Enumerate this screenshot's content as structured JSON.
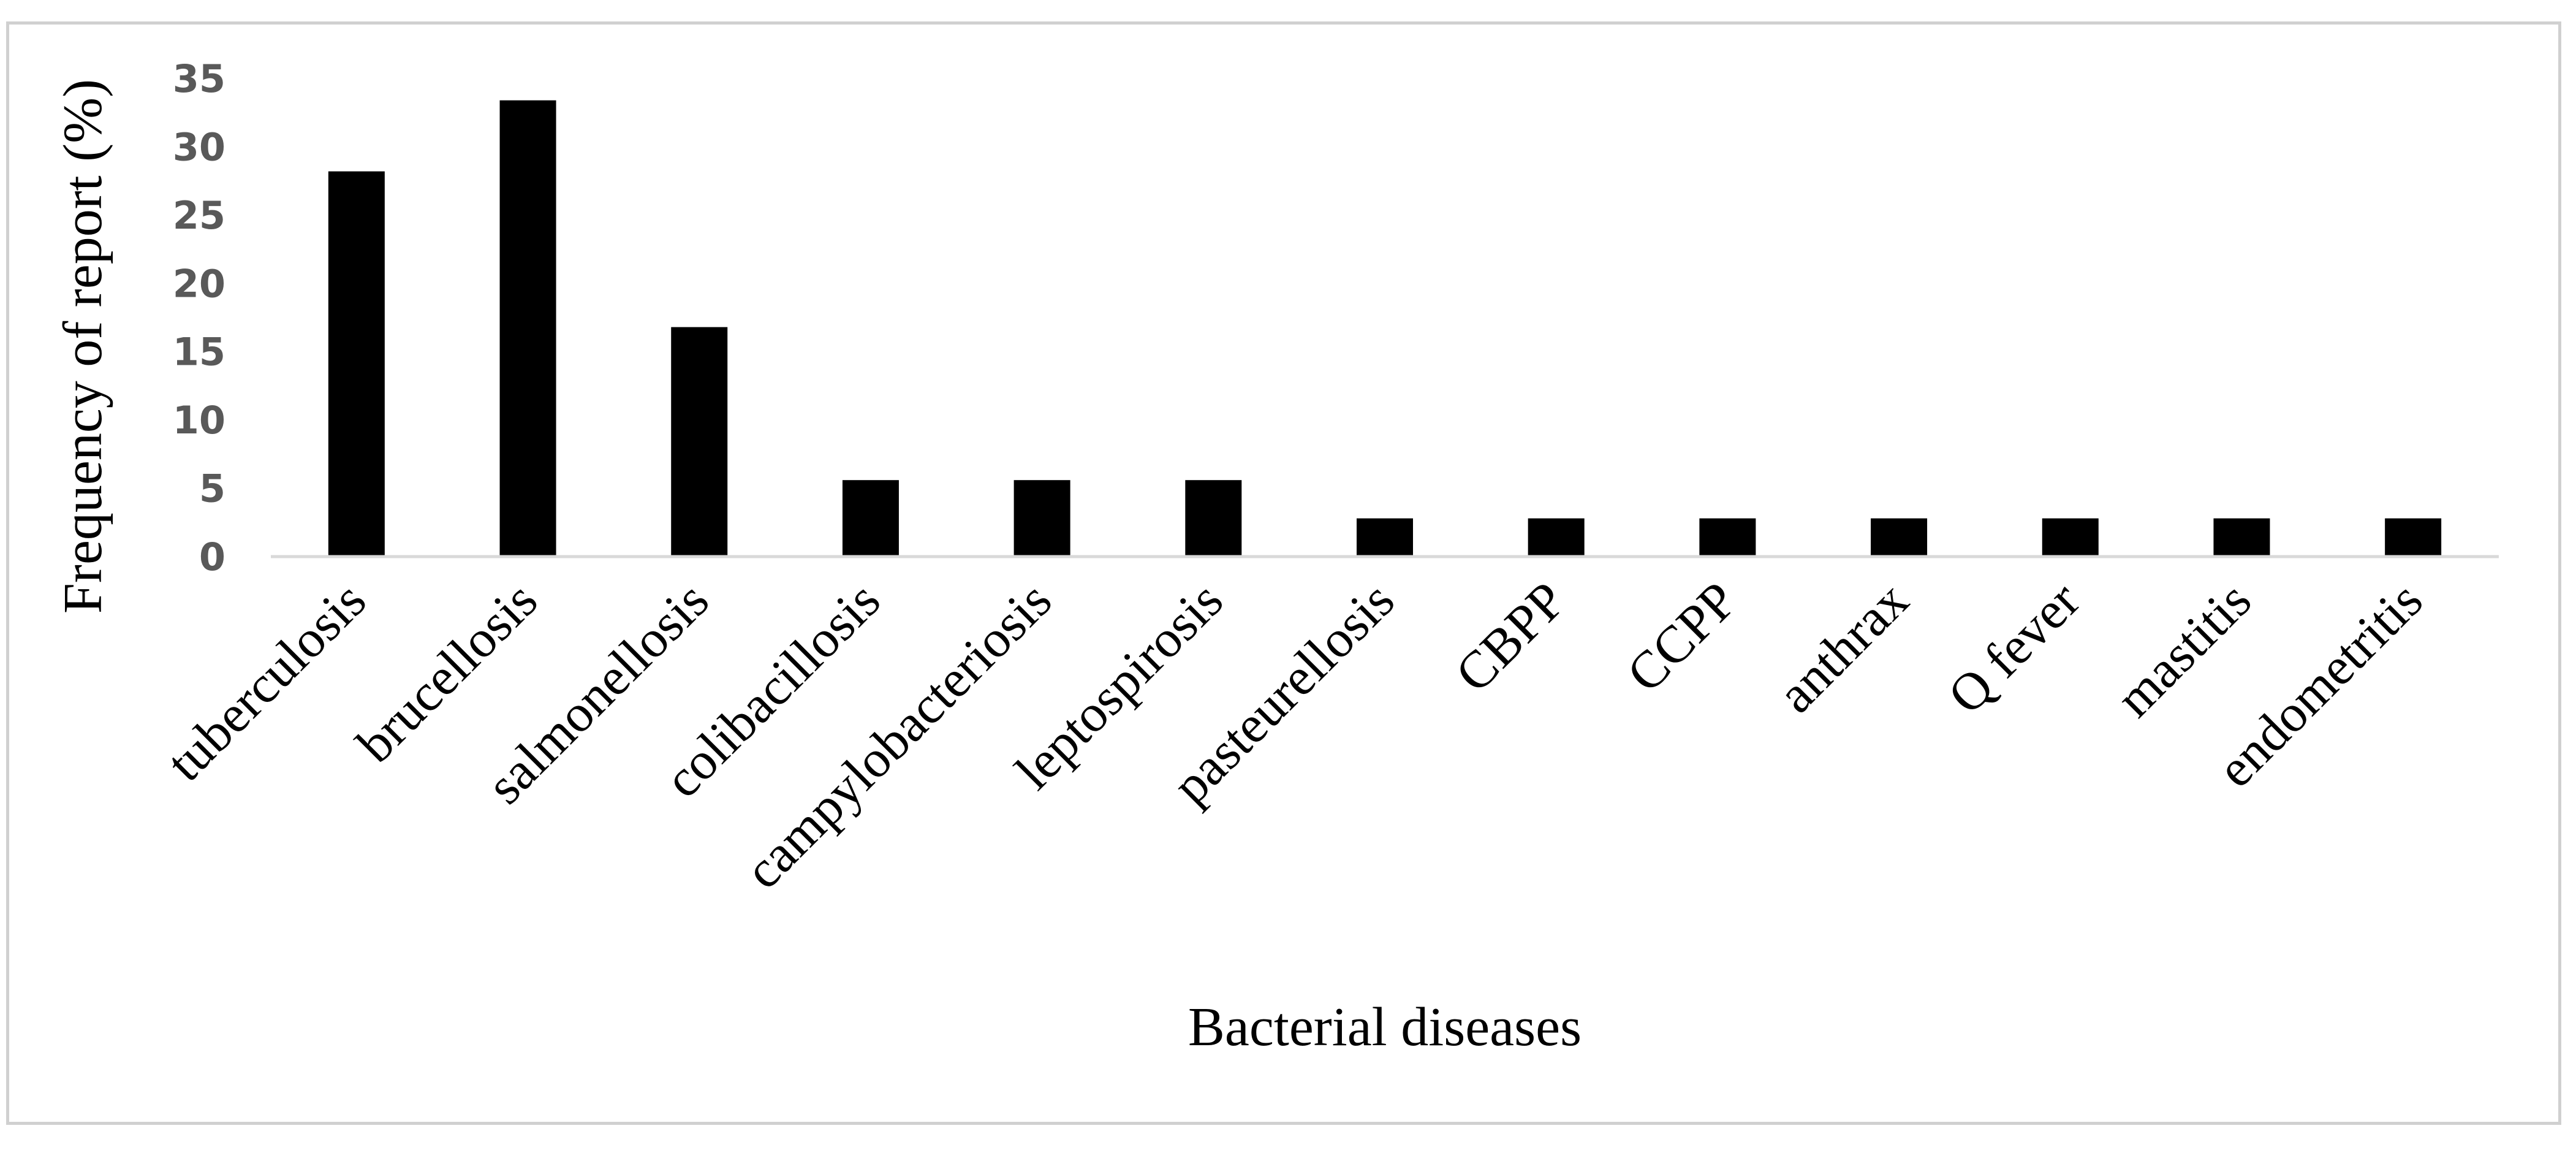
{
  "chart_data": {
    "type": "bar",
    "title": "",
    "xlabel": "Bacterial  diseases",
    "ylabel": "Frequency of report (%)",
    "categories": [
      "tuberculosis",
      "brucellosis",
      "salmonellosis",
      "colibacillosis",
      "campylobacteriosis",
      "leptospirosis",
      "pasteurellosis",
      "CBPP",
      "CCPP",
      "anthrax",
      "Q fever",
      "mastitis",
      "endometritis"
    ],
    "values": [
      28.2,
      33.4,
      16.8,
      5.6,
      5.6,
      5.6,
      2.8,
      2.8,
      2.8,
      2.8,
      2.8,
      2.8,
      2.8
    ],
    "ylim": [
      0,
      35
    ],
    "yticks": [
      "0",
      "5",
      "10",
      "15",
      "20",
      "25",
      "30",
      "35"
    ],
    "bar_color": "#000000",
    "axis_color": "#d9d9d9",
    "grid": false,
    "legend": "none"
  }
}
